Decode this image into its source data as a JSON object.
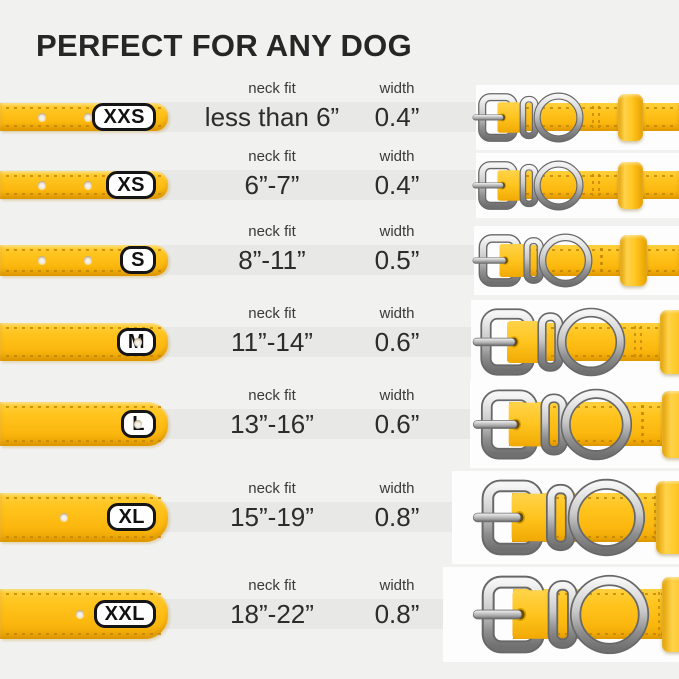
{
  "title": "PERFECT FOR ANY DOG",
  "columns": {
    "neck": "neck fit",
    "width": "width"
  },
  "rows": [
    {
      "size": "XXS",
      "neck_fit": "less than 6”",
      "width": "0.4”"
    },
    {
      "size": "XS",
      "neck_fit": "6”-7”",
      "width": "0.4”"
    },
    {
      "size": "S",
      "neck_fit": "8”-11”",
      "width": "0.5”"
    },
    {
      "size": "M",
      "neck_fit": "11”-14”",
      "width": "0.6”"
    },
    {
      "size": "L",
      "neck_fit": "13”-16”",
      "width": "0.6”"
    },
    {
      "size": "XL",
      "neck_fit": "15”-19”",
      "width": "0.8”"
    },
    {
      "size": "XXL",
      "neck_fit": "18”-22”",
      "width": "0.8”"
    }
  ],
  "colors": {
    "background": "#f1f1f0",
    "row_band": "#e8e8e6",
    "collar_yellow": "#ffc41e",
    "stitch_amber": "#c18404",
    "metal_silver": "#b9b9b9",
    "text_dark": "#2c2c2c"
  }
}
